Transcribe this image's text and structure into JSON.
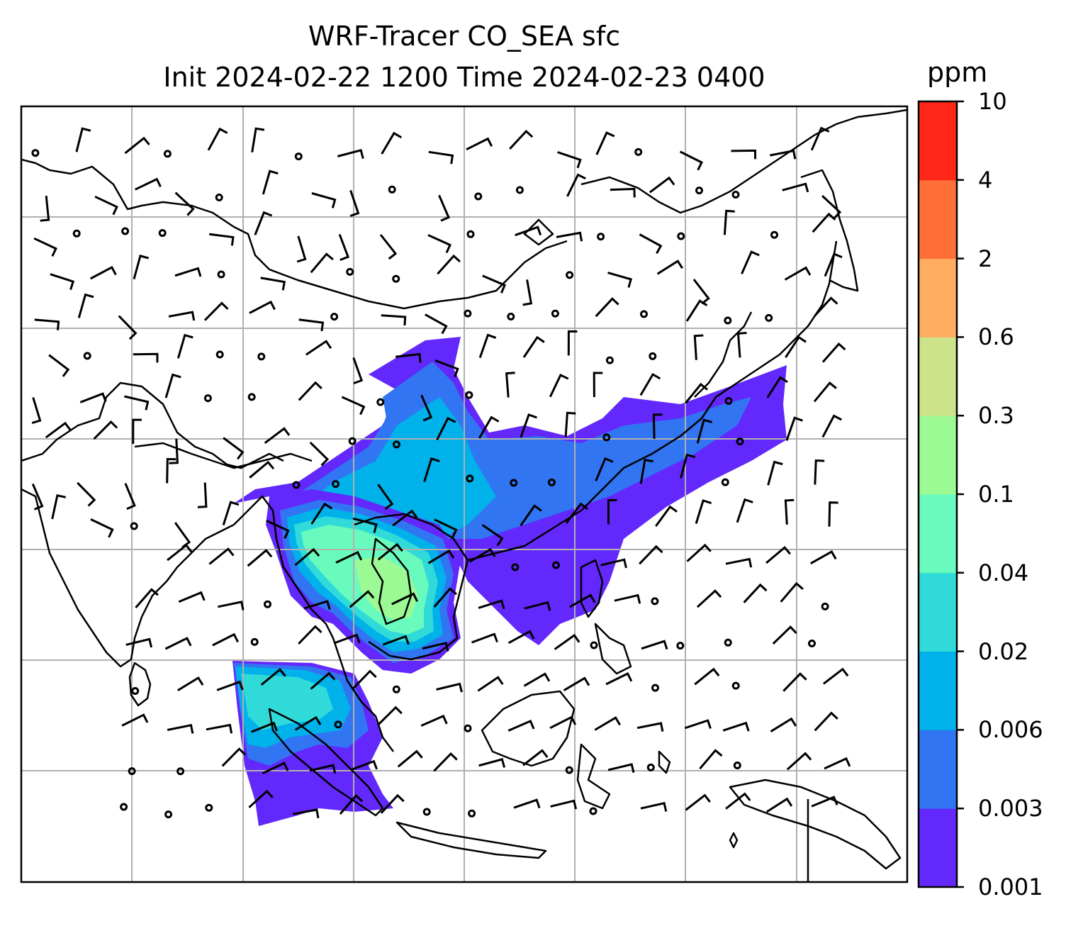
{
  "title": {
    "line1": "WRF-Tracer CO_SEA sfc",
    "line2": "Init 2024-02-22 1200 Time 2024-02-23 0400"
  },
  "colorbar": {
    "unit": "ppm",
    "levels": [
      "0.001",
      "0.003",
      "0.006",
      "0.02",
      "0.04",
      "0.1",
      "0.3",
      "0.6",
      "2",
      "4",
      "10"
    ],
    "colors": [
      "#6328fb",
      "#3175f3",
      "#00b1ea",
      "#2fdad8",
      "#69fbbd",
      "#9bfa93",
      "#cce38a",
      "#ffad60",
      "#ff7038",
      "#ff2818"
    ]
  },
  "map": {
    "gridlines": true,
    "coastline_color": "#000000",
    "gridline_color": "#b0b0b0",
    "field_label": "CO_SEA surface concentration",
    "wind_symbols": "barbs"
  }
}
